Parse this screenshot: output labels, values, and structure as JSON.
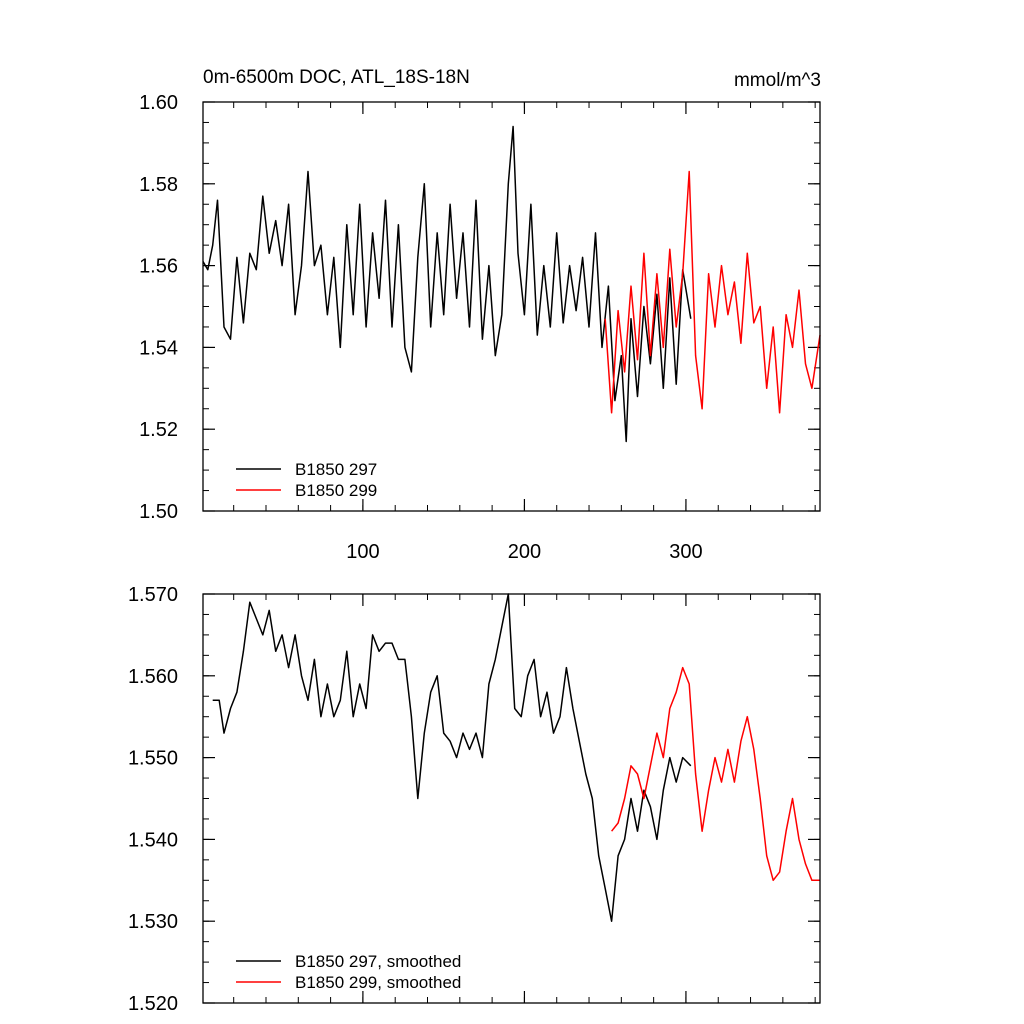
{
  "chart_data": [
    {
      "type": "line",
      "title": "0m-6500m DOC, ATL_18S-18N",
      "units": "mmol/m^3",
      "xlabel": "",
      "ylabel": "",
      "xlim": [
        1,
        383
      ],
      "ylim": [
        1.5,
        1.6
      ],
      "xticks": [
        100,
        200,
        300
      ],
      "xtick_labels": [
        "100",
        "200",
        "300"
      ],
      "yticks": [
        1.5,
        1.52,
        1.54,
        1.56,
        1.58,
        1.6
      ],
      "ytick_labels": [
        "1.50",
        "1.52",
        "1.54",
        "1.56",
        "1.58",
        "1.60"
      ],
      "grid": false,
      "legend_position": "bottom-left",
      "series": [
        {
          "name": "B1850 297",
          "color": "#000000",
          "x": [
            1,
            4,
            7,
            10,
            14,
            18,
            22,
            26,
            30,
            34,
            38,
            42,
            46,
            50,
            54,
            58,
            62,
            66,
            70,
            74,
            78,
            82,
            86,
            90,
            94,
            98,
            102,
            106,
            110,
            114,
            118,
            122,
            126,
            130,
            134,
            138,
            142,
            146,
            150,
            154,
            158,
            162,
            166,
            170,
            174,
            178,
            182,
            186,
            190,
            193,
            196,
            200,
            204,
            208,
            212,
            216,
            220,
            224,
            228,
            232,
            236,
            240,
            244,
            248,
            252,
            256,
            260,
            263,
            266,
            270,
            274,
            278,
            282,
            286,
            290,
            294,
            298,
            303
          ],
          "values": [
            1.561,
            1.559,
            1.565,
            1.576,
            1.545,
            1.542,
            1.562,
            1.546,
            1.563,
            1.559,
            1.577,
            1.563,
            1.571,
            1.56,
            1.575,
            1.548,
            1.56,
            1.583,
            1.56,
            1.565,
            1.548,
            1.562,
            1.54,
            1.57,
            1.548,
            1.575,
            1.545,
            1.568,
            1.552,
            1.576,
            1.545,
            1.57,
            1.54,
            1.534,
            1.562,
            1.58,
            1.545,
            1.568,
            1.548,
            1.575,
            1.552,
            1.568,
            1.545,
            1.576,
            1.542,
            1.56,
            1.538,
            1.548,
            1.58,
            1.594,
            1.563,
            1.548,
            1.575,
            1.543,
            1.56,
            1.545,
            1.568,
            1.546,
            1.56,
            1.549,
            1.562,
            1.545,
            1.568,
            1.54,
            1.555,
            1.527,
            1.538,
            1.517,
            1.547,
            1.528,
            1.55,
            1.536,
            1.553,
            1.53,
            1.557,
            1.531,
            1.559,
            1.547
          ]
        },
        {
          "name": "B1850 299",
          "color": "#ff0000",
          "x": [
            250,
            254,
            258,
            262,
            266,
            270,
            274,
            278,
            282,
            286,
            290,
            294,
            298,
            302,
            306,
            310,
            314,
            318,
            322,
            326,
            330,
            334,
            338,
            342,
            346,
            350,
            354,
            358,
            362,
            366,
            370,
            374,
            378,
            383
          ],
          "values": [
            1.547,
            1.524,
            1.549,
            1.534,
            1.555,
            1.537,
            1.563,
            1.538,
            1.558,
            1.54,
            1.564,
            1.545,
            1.558,
            1.583,
            1.538,
            1.525,
            1.558,
            1.545,
            1.56,
            1.548,
            1.556,
            1.541,
            1.563,
            1.546,
            1.55,
            1.53,
            1.545,
            1.524,
            1.548,
            1.54,
            1.554,
            1.536,
            1.53,
            1.543
          ]
        }
      ]
    },
    {
      "type": "line",
      "title": "",
      "xlabel": "",
      "ylabel": "",
      "xlim": [
        1,
        383
      ],
      "ylim": [
        1.52,
        1.57
      ],
      "xticks": [
        100,
        200,
        300
      ],
      "yticks": [
        1.52,
        1.53,
        1.54,
        1.55,
        1.56,
        1.57
      ],
      "ytick_labels": [
        "1.520",
        "1.530",
        "1.540",
        "1.550",
        "1.560",
        "1.570"
      ],
      "grid": false,
      "legend_position": "bottom-left",
      "series": [
        {
          "name": "B1850 297, smoothed",
          "color": "#000000",
          "x": [
            7,
            11,
            14,
            18,
            22,
            26,
            30,
            34,
            38,
            42,
            46,
            50,
            54,
            58,
            62,
            66,
            70,
            74,
            78,
            82,
            86,
            90,
            94,
            98,
            102,
            106,
            110,
            114,
            118,
            122,
            126,
            130,
            134,
            138,
            142,
            146,
            150,
            154,
            158,
            162,
            166,
            170,
            174,
            178,
            182,
            186,
            190,
            194,
            198,
            202,
            206,
            210,
            214,
            218,
            222,
            226,
            230,
            234,
            238,
            242,
            246,
            250,
            254,
            258,
            262,
            266,
            270,
            274,
            278,
            282,
            286,
            290,
            294,
            298,
            303
          ],
          "values": [
            1.557,
            1.557,
            1.553,
            1.556,
            1.558,
            1.563,
            1.569,
            1.567,
            1.565,
            1.568,
            1.563,
            1.565,
            1.561,
            1.565,
            1.56,
            1.557,
            1.562,
            1.555,
            1.559,
            1.555,
            1.557,
            1.563,
            1.555,
            1.559,
            1.556,
            1.565,
            1.563,
            1.564,
            1.564,
            1.562,
            1.562,
            1.555,
            1.545,
            1.553,
            1.558,
            1.56,
            1.553,
            1.552,
            1.55,
            1.553,
            1.551,
            1.553,
            1.55,
            1.559,
            1.562,
            1.566,
            1.57,
            1.556,
            1.555,
            1.56,
            1.562,
            1.555,
            1.558,
            1.553,
            1.555,
            1.561,
            1.556,
            1.552,
            1.548,
            1.545,
            1.538,
            1.534,
            1.53,
            1.538,
            1.54,
            1.545,
            1.541,
            1.546,
            1.544,
            1.54,
            1.546,
            1.55,
            1.547,
            1.55,
            1.549
          ]
        },
        {
          "name": "B1850 299, smoothed",
          "color": "#ff0000",
          "x": [
            254,
            258,
            262,
            266,
            270,
            274,
            278,
            282,
            286,
            290,
            294,
            298,
            302,
            306,
            310,
            314,
            318,
            322,
            326,
            330,
            334,
            338,
            342,
            346,
            350,
            354,
            358,
            362,
            366,
            370,
            374,
            378,
            383
          ],
          "values": [
            1.541,
            1.542,
            1.545,
            1.549,
            1.548,
            1.545,
            1.549,
            1.553,
            1.55,
            1.556,
            1.558,
            1.561,
            1.559,
            1.548,
            1.541,
            1.546,
            1.55,
            1.547,
            1.551,
            1.547,
            1.552,
            1.555,
            1.551,
            1.545,
            1.538,
            1.535,
            1.536,
            1.541,
            1.545,
            1.54,
            1.537,
            1.535,
            1.535
          ]
        }
      ]
    }
  ]
}
